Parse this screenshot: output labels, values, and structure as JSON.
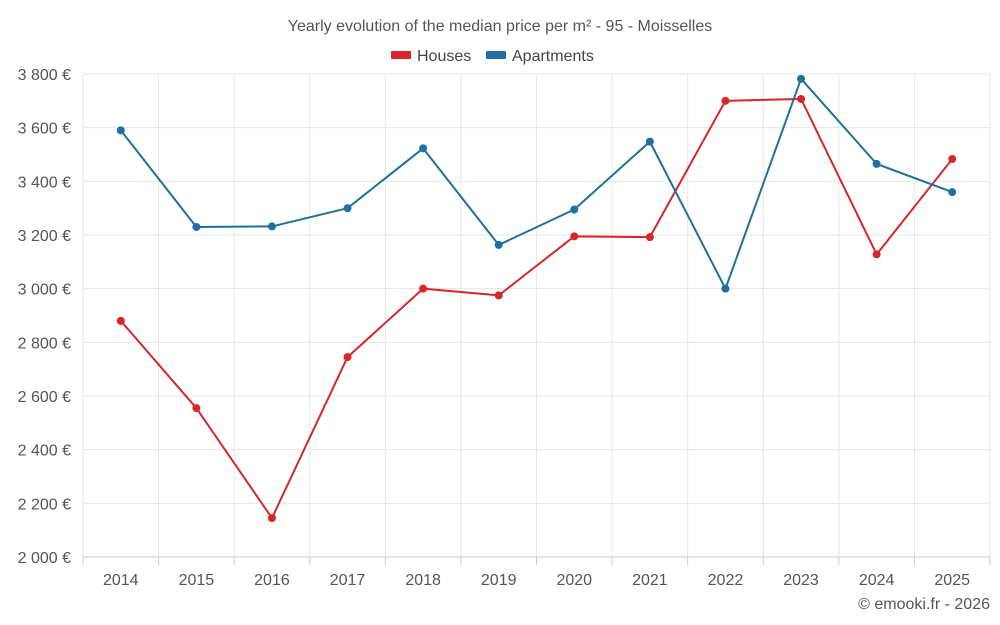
{
  "chart_data": {
    "type": "line",
    "title": "Yearly evolution of the median price per m² - 95 - Moisselles",
    "categories": [
      "2014",
      "2015",
      "2016",
      "2017",
      "2018",
      "2019",
      "2020",
      "2021",
      "2022",
      "2023",
      "2024",
      "2025"
    ],
    "series": [
      {
        "name": "Houses",
        "color": "#d62728",
        "values": [
          2880,
          2555,
          2145,
          2745,
          3000,
          2975,
          3195,
          3192,
          3700,
          3707,
          3128,
          3483
        ]
      },
      {
        "name": "Apartments",
        "color": "#1f6f9f",
        "values": [
          3590,
          3230,
          3232,
          3300,
          3523,
          3163,
          3295,
          3548,
          3000,
          3782,
          3465,
          3360
        ]
      }
    ],
    "ylim": [
      2000,
      3800
    ],
    "yticks": [
      2000,
      2200,
      2400,
      2600,
      2800,
      3000,
      3200,
      3400,
      3600,
      3800
    ],
    "ytick_labels": [
      "2 000 €",
      "2 200 €",
      "2 400 €",
      "2 600 €",
      "2 800 €",
      "3 000 €",
      "3 200 €",
      "3 400 €",
      "3 600 €",
      "3 800 €"
    ],
    "xlabel": "",
    "ylabel": "",
    "grid": true,
    "legend_position": "top-center"
  },
  "credit": "© emooki.fr - 2026"
}
